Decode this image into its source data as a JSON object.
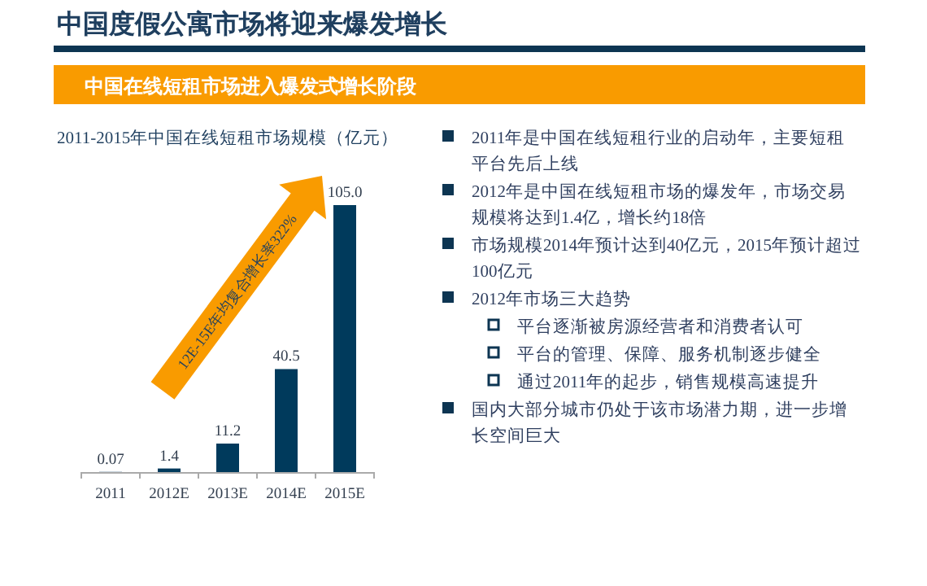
{
  "chart_data": {
    "type": "bar",
    "title": "中国度假公寓市场将迎来爆发增长",
    "subtitle": "中国在线短租市场进入爆发式增长阶段",
    "categories": [
      "2011",
      "2012E",
      "2013E",
      "2014E",
      "2015E"
    ],
    "values": [
      0.07,
      1.4,
      11.2,
      40.5,
      105.0
    ],
    "value_labels": [
      "0.07",
      "1.4",
      "11.2",
      "40.5",
      "105.0"
    ],
    "color": "#003a5c",
    "annotations": [
      "2011-2015年中国在线短租市场规模（亿元）",
      "12E-15E年均复合增长率322%",
      "2011年是中国在线短租行业的启动年，主要短租平台先后上线",
      "2012年是中国在线短租市场的爆发年，市场交易规模将达到1.4亿，增长约18倍",
      "市场规模2014年预计达到40亿元，2015年预计超过100亿元",
      "2012年市场三大趋势",
      "平台逐渐被房源经营者和消费者认可",
      "平台的管理、保障、服务机制逐步健全",
      "通过2011年的起步，销售规模高速提升",
      "国内大部分城市仍处于该市场潜力期，进一步增长空间巨大"
    ]
  }
}
